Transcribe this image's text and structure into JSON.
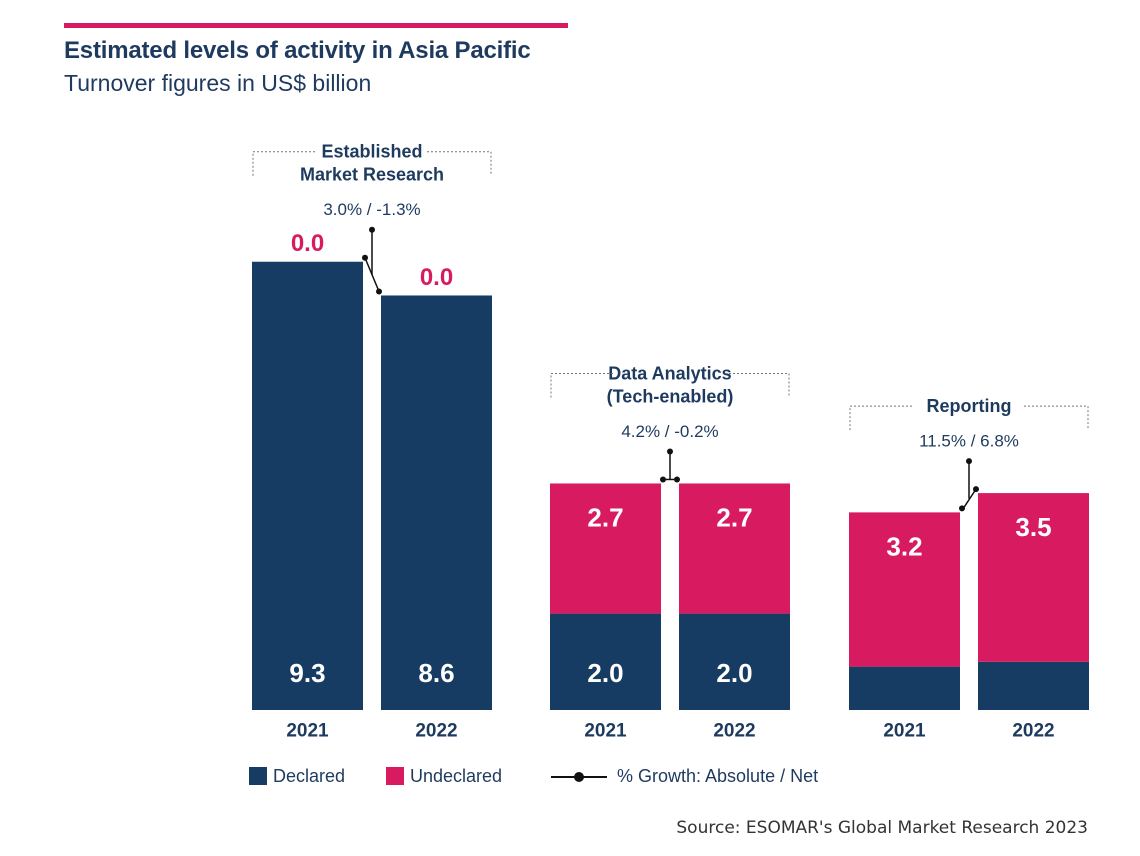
{
  "title": "Estimated levels of activity in Asia Pacific",
  "subtitle": "Turnover figures in US$ billion",
  "source": "Source: ESOMAR's Global Market Research 2023",
  "colors": {
    "declared": "#163c63",
    "undeclared": "#d81b60",
    "text_dark": "#1e3a5f",
    "accent": "#d81b60"
  },
  "legend": {
    "declared": "Declared",
    "undeclared": "Undeclared",
    "growth": "% Growth: Absolute / Net"
  },
  "chart_data": {
    "type": "bar",
    "stacked": true,
    "title": "Estimated levels of activity in Asia Pacific",
    "subtitle": "Turnover figures in US$ billion",
    "categories": [
      "2021",
      "2022"
    ],
    "groups": [
      {
        "name_lines": [
          "Established",
          "Market Research"
        ],
        "growth": "3.0% / -1.3%",
        "declared": [
          9.3,
          8.6
        ],
        "undeclared": [
          0.0,
          0.0
        ]
      },
      {
        "name_lines": [
          "Data Analytics",
          "(Tech-enabled)"
        ],
        "growth": "4.2% / -0.2%",
        "declared": [
          2.0,
          2.0
        ],
        "undeclared": [
          2.7,
          2.7
        ]
      },
      {
        "name_lines": [
          "Reporting"
        ],
        "growth": "11.5% / 6.8%",
        "declared": [
          0.9,
          1.0
        ],
        "undeclared": [
          3.2,
          3.5
        ]
      }
    ],
    "series": [
      {
        "name": "Declared",
        "key": "declared"
      },
      {
        "name": "Undeclared",
        "key": "undeclared"
      }
    ],
    "xlabel": "",
    "ylabel": "",
    "ylim": [
      0,
      9.3
    ]
  }
}
